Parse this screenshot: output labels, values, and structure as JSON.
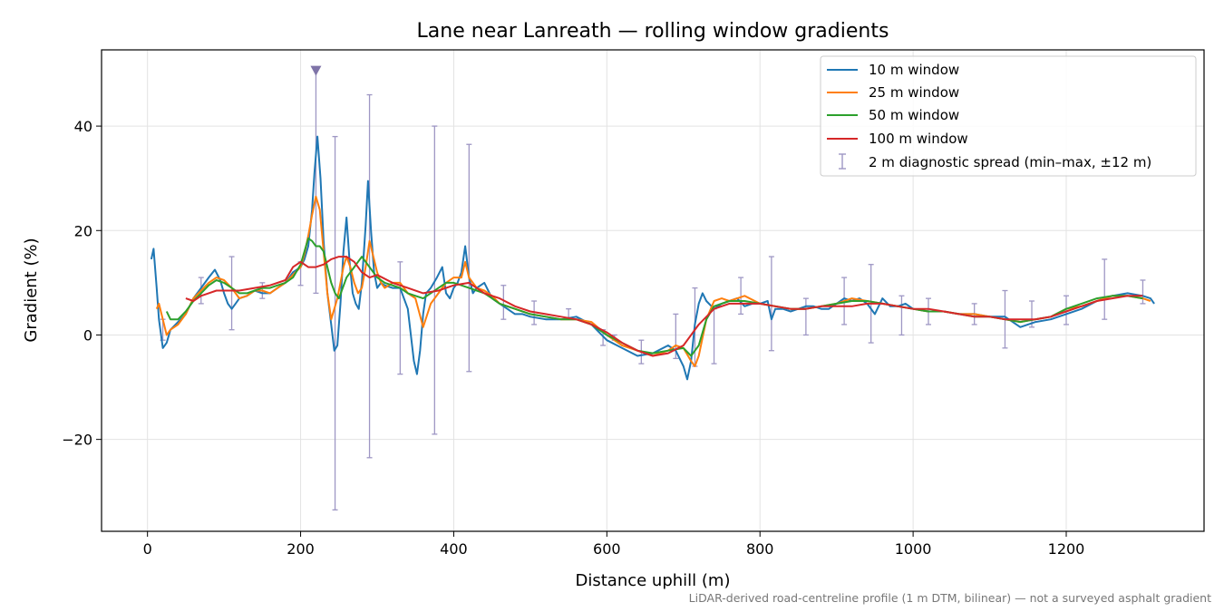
{
  "chart_data": {
    "type": "line",
    "title": "Lane near Lanreath — rolling window gradients",
    "xlabel": "Distance uphill (m)",
    "ylabel": "Gradient (%)",
    "xlim": [
      -60,
      1380
    ],
    "ylim": [
      -37.6,
      54.6
    ],
    "xticks": [
      0,
      200,
      400,
      600,
      800,
      1000,
      1200
    ],
    "yticks": [
      -20,
      0,
      20,
      40
    ],
    "xtick_labels": [
      "0",
      "200",
      "400",
      "600",
      "800",
      "1000",
      "1200"
    ],
    "ytick_labels": [
      "−20",
      "0",
      "20",
      "40"
    ],
    "grid": true,
    "legend_position": "top-right",
    "footnote": "LiDAR-derived road-centreline profile (1 m DTM, bilinear) — not a surveyed asphalt gradient",
    "series": [
      {
        "name": "10 m window",
        "color": "#1f77b4",
        "x": [
          5,
          8,
          12,
          15,
          20,
          25,
          30,
          40,
          50,
          60,
          70,
          80,
          88,
          95,
          100,
          105,
          110,
          115,
          120,
          130,
          140,
          150,
          160,
          170,
          180,
          190,
          200,
          205,
          210,
          215,
          218,
          222,
          226,
          230,
          235,
          240,
          244,
          248,
          252,
          256,
          260,
          264,
          268,
          272,
          276,
          280,
          285,
          288,
          292,
          296,
          300,
          305,
          310,
          320,
          330,
          340,
          348,
          352,
          356,
          360,
          364,
          370,
          378,
          385,
          390,
          395,
          400,
          405,
          410,
          415,
          420,
          425,
          430,
          440,
          450,
          460,
          470,
          480,
          490,
          500,
          520,
          540,
          560,
          580,
          600,
          620,
          640,
          660,
          680,
          690,
          700,
          705,
          710,
          715,
          720,
          725,
          730,
          740,
          750,
          760,
          770,
          780,
          790,
          800,
          810,
          815,
          820,
          830,
          840,
          850,
          860,
          870,
          880,
          890,
          900,
          910,
          920,
          930,
          940,
          950,
          960,
          970,
          980,
          990,
          1000,
          1020,
          1040,
          1060,
          1080,
          1100,
          1120,
          1130,
          1140,
          1160,
          1180,
          1200,
          1220,
          1240,
          1260,
          1280,
          1300,
          1310,
          1315
        ],
        "y": [
          14.5,
          16.5,
          9.0,
          3.0,
          -2.5,
          -1.5,
          1.0,
          2.5,
          4.0,
          7.0,
          9.0,
          11.0,
          12.5,
          10.5,
          8.0,
          6.0,
          5.0,
          6.0,
          7.0,
          7.5,
          8.5,
          8.0,
          8.0,
          9.0,
          10.0,
          12.0,
          13.0,
          14.5,
          17.0,
          24.0,
          31.0,
          38.0,
          30.0,
          18.0,
          8.0,
          2.0,
          -3.0,
          -2.0,
          6.0,
          16.0,
          22.5,
          14.0,
          8.0,
          6.0,
          5.0,
          10.0,
          21.0,
          29.5,
          20.0,
          12.0,
          9.0,
          10.0,
          9.5,
          9.0,
          9.0,
          5.0,
          -5.0,
          -7.5,
          -3.0,
          4.0,
          8.0,
          9.0,
          11.0,
          13.0,
          8.0,
          7.0,
          9.0,
          10.0,
          12.0,
          17.0,
          11.0,
          8.0,
          9.0,
          10.0,
          7.0,
          6.0,
          5.0,
          4.0,
          4.0,
          3.5,
          3.0,
          3.0,
          3.5,
          2.0,
          -1.0,
          -2.5,
          -4.0,
          -3.5,
          -2.0,
          -3.0,
          -6.0,
          -8.5,
          -5.0,
          2.0,
          6.0,
          8.0,
          6.5,
          5.0,
          6.0,
          6.5,
          7.0,
          5.5,
          6.0,
          6.0,
          6.5,
          3.0,
          5.0,
          5.0,
          4.5,
          5.0,
          5.5,
          5.5,
          5.0,
          5.0,
          6.0,
          7.0,
          6.5,
          7.0,
          6.0,
          4.0,
          7.0,
          5.5,
          5.5,
          6.0,
          5.0,
          4.5,
          4.5,
          4.0,
          4.0,
          3.5,
          3.5,
          2.5,
          1.5,
          2.5,
          3.0,
          4.0,
          5.0,
          6.5,
          7.5,
          8.0,
          7.5,
          7.0,
          6.0
        ]
      },
      {
        "name": "25 m window",
        "color": "#ff7f0e",
        "x": [
          12,
          15,
          20,
          25,
          30,
          40,
          50,
          60,
          70,
          80,
          90,
          100,
          110,
          120,
          130,
          140,
          150,
          160,
          170,
          180,
          190,
          200,
          205,
          210,
          215,
          220,
          225,
          230,
          235,
          240,
          244,
          248,
          252,
          256,
          260,
          265,
          270,
          275,
          280,
          285,
          290,
          295,
          300,
          305,
          310,
          320,
          330,
          340,
          350,
          360,
          370,
          380,
          390,
          400,
          410,
          415,
          420,
          430,
          440,
          450,
          460,
          480,
          500,
          520,
          540,
          560,
          580,
          600,
          620,
          640,
          660,
          680,
          690,
          700,
          710,
          715,
          720,
          730,
          740,
          750,
          760,
          780,
          800,
          820,
          840,
          860,
          880,
          900,
          920,
          940,
          960,
          980,
          1000,
          1020,
          1040,
          1060,
          1080,
          1100,
          1120,
          1140,
          1160,
          1180,
          1200,
          1220,
          1240,
          1260,
          1280,
          1300,
          1310
        ],
        "y": [
          5.0,
          6.0,
          3.0,
          0.0,
          1.0,
          2.0,
          4.0,
          7.0,
          8.5,
          10.0,
          11.0,
          10.5,
          9.0,
          7.0,
          7.5,
          8.5,
          8.5,
          8.0,
          9.0,
          10.0,
          11.5,
          13.0,
          15.5,
          19.0,
          23.0,
          26.5,
          24.0,
          16.0,
          8.0,
          3.0,
          5.0,
          7.0,
          10.0,
          13.0,
          15.0,
          13.0,
          10.0,
          8.0,
          9.0,
          13.0,
          18.0,
          15.0,
          12.0,
          10.0,
          9.0,
          10.0,
          10.0,
          8.0,
          7.0,
          1.5,
          6.0,
          8.0,
          10.0,
          11.0,
          11.0,
          14.0,
          11.0,
          9.0,
          8.5,
          7.5,
          6.0,
          5.0,
          4.0,
          3.5,
          3.0,
          3.0,
          2.5,
          0.0,
          -2.0,
          -3.0,
          -4.0,
          -3.0,
          -2.0,
          -2.5,
          -5.0,
          -6.0,
          -4.0,
          3.0,
          6.5,
          7.0,
          6.5,
          7.5,
          6.0,
          5.5,
          5.0,
          5.0,
          5.5,
          6.0,
          7.0,
          6.5,
          6.0,
          5.5,
          5.0,
          4.5,
          4.5,
          4.0,
          4.0,
          3.5,
          3.0,
          2.5,
          3.0,
          3.5,
          5.0,
          5.5,
          6.5,
          7.5,
          7.5,
          7.0,
          6.5
        ]
      },
      {
        "name": "50 m window",
        "color": "#2ca02c",
        "x": [
          25,
          30,
          40,
          50,
          60,
          70,
          80,
          90,
          100,
          110,
          120,
          130,
          140,
          150,
          160,
          170,
          180,
          190,
          200,
          205,
          210,
          215,
          220,
          225,
          230,
          235,
          240,
          245,
          250,
          255,
          260,
          265,
          270,
          275,
          280,
          285,
          290,
          295,
          300,
          310,
          320,
          330,
          340,
          350,
          360,
          370,
          380,
          390,
          400,
          410,
          420,
          430,
          440,
          450,
          460,
          480,
          500,
          520,
          540,
          560,
          580,
          600,
          620,
          640,
          660,
          680,
          700,
          710,
          720,
          730,
          740,
          760,
          780,
          800,
          820,
          840,
          860,
          880,
          900,
          920,
          940,
          960,
          980,
          1000,
          1020,
          1040,
          1060,
          1080,
          1100,
          1120,
          1140,
          1160,
          1180,
          1200,
          1220,
          1240,
          1260,
          1280,
          1300
        ],
        "y": [
          4.5,
          3.0,
          3.0,
          4.5,
          6.5,
          8.0,
          9.5,
          10.5,
          10.0,
          9.0,
          8.0,
          8.0,
          8.5,
          9.0,
          9.0,
          9.5,
          10.0,
          11.0,
          13.5,
          16.0,
          18.5,
          18.0,
          17.0,
          17.0,
          16.0,
          13.0,
          10.0,
          8.0,
          7.0,
          9.0,
          11.0,
          12.0,
          13.0,
          14.0,
          15.0,
          14.0,
          13.0,
          12.0,
          11.0,
          10.0,
          9.5,
          9.0,
          8.0,
          7.5,
          7.0,
          8.0,
          9.0,
          10.0,
          10.0,
          9.5,
          9.0,
          8.5,
          8.0,
          7.0,
          6.0,
          5.0,
          4.0,
          3.5,
          3.0,
          3.0,
          2.0,
          0.0,
          -1.5,
          -3.0,
          -3.5,
          -3.0,
          -2.5,
          -4.0,
          -2.0,
          3.0,
          5.5,
          6.5,
          6.5,
          6.0,
          5.5,
          5.0,
          5.0,
          5.5,
          6.0,
          6.5,
          6.5,
          6.0,
          5.5,
          5.0,
          4.5,
          4.5,
          4.0,
          3.5,
          3.5,
          3.0,
          2.5,
          3.0,
          3.5,
          5.0,
          6.0,
          7.0,
          7.5,
          7.5,
          7.0
        ]
      },
      {
        "name": "100 m window",
        "color": "#d62728",
        "x": [
          50,
          60,
          70,
          80,
          90,
          100,
          120,
          140,
          160,
          180,
          190,
          200,
          210,
          220,
          230,
          240,
          250,
          260,
          270,
          280,
          290,
          300,
          320,
          340,
          360,
          380,
          400,
          420,
          440,
          460,
          480,
          500,
          520,
          540,
          560,
          580,
          600,
          620,
          640,
          660,
          680,
          700,
          720,
          740,
          760,
          780,
          800,
          820,
          840,
          860,
          880,
          900,
          920,
          940,
          960,
          980,
          1000,
          1020,
          1040,
          1060,
          1080,
          1100,
          1120,
          1140,
          1160,
          1180,
          1200,
          1220,
          1240,
          1260,
          1280,
          1300
        ],
        "y": [
          7.0,
          6.5,
          7.5,
          8.0,
          8.5,
          8.5,
          8.5,
          9.0,
          9.5,
          10.5,
          13.0,
          14.0,
          13.0,
          13.0,
          13.5,
          14.5,
          15.0,
          15.0,
          14.0,
          12.0,
          11.0,
          11.5,
          10.0,
          9.0,
          8.0,
          8.5,
          9.5,
          10.0,
          8.0,
          7.0,
          5.5,
          4.5,
          4.0,
          3.5,
          3.0,
          2.0,
          0.5,
          -1.5,
          -3.0,
          -4.0,
          -3.5,
          -2.0,
          2.0,
          5.0,
          6.0,
          6.0,
          6.0,
          5.5,
          5.0,
          5.0,
          5.5,
          5.5,
          5.5,
          6.0,
          6.0,
          5.5,
          5.0,
          5.0,
          4.5,
          4.0,
          3.5,
          3.5,
          3.0,
          3.0,
          3.0,
          3.5,
          4.5,
          5.5,
          6.5,
          7.0,
          7.5,
          7.5
        ]
      }
    ],
    "errorbars": {
      "name": "2 m diagnostic spread (min–max, ±12 m)",
      "color": "#9e97c4",
      "x": [
        20,
        70,
        110,
        150,
        200,
        220,
        245,
        290,
        330,
        375,
        420,
        465,
        505,
        550,
        595,
        610,
        645,
        690,
        715,
        740,
        775,
        815,
        860,
        910,
        945,
        985,
        1020,
        1080,
        1120,
        1155,
        1200,
        1250,
        1300
      ],
      "low": [
        -1,
        6,
        1,
        7,
        9.5,
        8,
        -33.5,
        -23.5,
        -7.5,
        -19,
        -7,
        3,
        2,
        3,
        -2,
        -1,
        -5.5,
        -4.5,
        -6,
        -5.5,
        4,
        -3,
        0,
        2,
        -1.5,
        0,
        2,
        2,
        -2.5,
        1.5,
        2,
        3,
        6
      ],
      "high": [
        3,
        11,
        15,
        10,
        14,
        51,
        38,
        46,
        14,
        40,
        36.5,
        9.5,
        6.5,
        5,
        1,
        0,
        -1,
        4,
        9,
        5,
        11,
        15,
        7,
        11,
        13.5,
        7.5,
        7,
        6,
        8.5,
        6.5,
        7.5,
        14.5,
        10.5
      ]
    },
    "marker": {
      "x": 220,
      "y": 50.5,
      "color": "#7f74a8"
    }
  }
}
